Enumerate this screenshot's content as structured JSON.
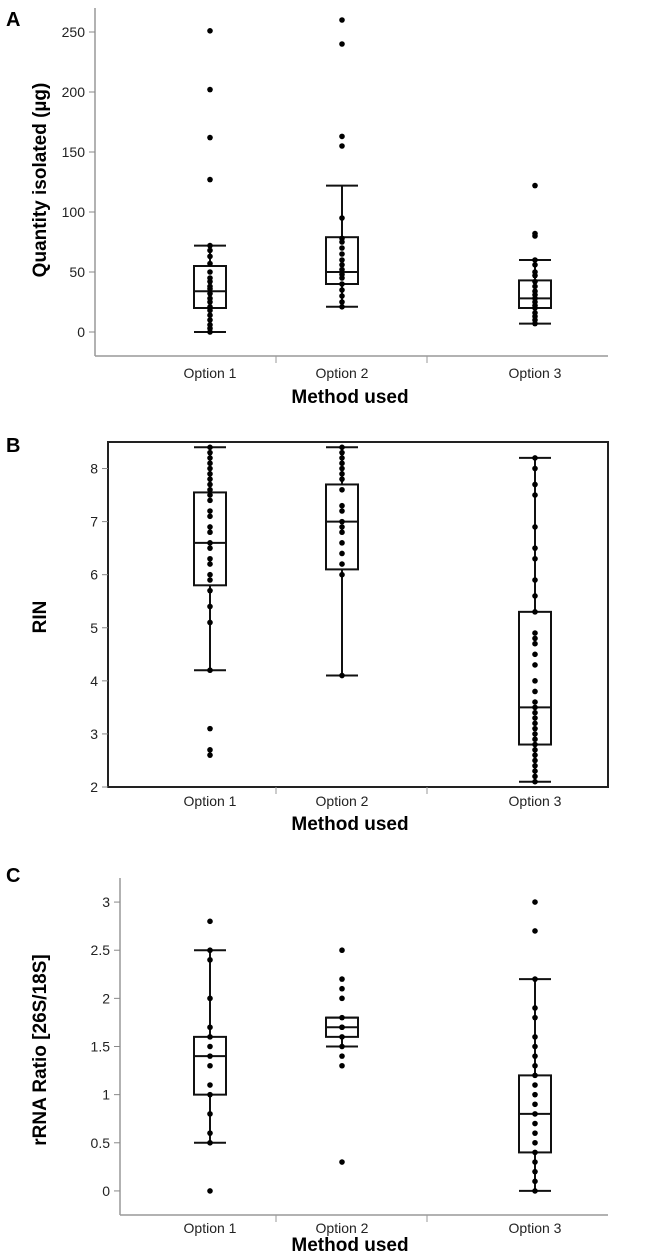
{
  "chart_data": [
    {
      "panel_label": "A",
      "type": "box",
      "xlabel": "Method used",
      "ylabel": "Quantity isolated (µg)",
      "ylim": [
        -20,
        270
      ],
      "yticks": [
        0,
        50,
        100,
        150,
        200,
        250
      ],
      "categories": [
        "Option 1",
        "Option 2",
        "Option 3"
      ],
      "frame": "open",
      "boxes": [
        {
          "category": "Option 1",
          "whisker_low": 0,
          "q1": 20,
          "median": 34,
          "q3": 55,
          "whisker_high": 72,
          "points": [
            0,
            3,
            6,
            10,
            14,
            18,
            21,
            25,
            28,
            32,
            36,
            38,
            42,
            45,
            50,
            57,
            63,
            68,
            72,
            127,
            162,
            202,
            251
          ]
        },
        {
          "category": "Option 2",
          "whisker_low": 21,
          "q1": 40,
          "median": 50,
          "q3": 79,
          "whisker_high": 122,
          "points": [
            21,
            25,
            30,
            35,
            40,
            45,
            48,
            52,
            56,
            60,
            65,
            70,
            75,
            78,
            95,
            155,
            163,
            240,
            260
          ]
        },
        {
          "category": "Option 3",
          "whisker_low": 7,
          "q1": 20,
          "median": 28,
          "q3": 43,
          "whisker_high": 60,
          "points": [
            7,
            10,
            13,
            16,
            20,
            22,
            25,
            28,
            31,
            34,
            38,
            42,
            47,
            50,
            56,
            60,
            80,
            82,
            122
          ]
        }
      ]
    },
    {
      "panel_label": "B",
      "type": "box",
      "xlabel": "Method used",
      "ylabel": "RIN",
      "ylim": [
        2,
        8.5
      ],
      "yticks": [
        2,
        3,
        4,
        5,
        6,
        7,
        8
      ],
      "categories": [
        "Option 1",
        "Option 2",
        "Option 3"
      ],
      "frame": "closed",
      "boxes": [
        {
          "category": "Option 1",
          "whisker_low": 4.2,
          "q1": 5.8,
          "median": 6.6,
          "q3": 7.55,
          "whisker_high": 8.4,
          "points": [
            2.6,
            2.7,
            3.1,
            4.2,
            5.1,
            5.4,
            5.7,
            5.9,
            6.0,
            6.2,
            6.3,
            6.5,
            6.6,
            6.8,
            6.9,
            7.1,
            7.2,
            7.4,
            7.5,
            7.6,
            7.7,
            7.8,
            7.9,
            8.0,
            8.1,
            8.2,
            8.3,
            8.4
          ]
        },
        {
          "category": "Option 2",
          "whisker_low": 4.1,
          "q1": 6.1,
          "median": 7.0,
          "q3": 7.7,
          "whisker_high": 8.4,
          "points": [
            4.1,
            6.0,
            6.2,
            6.4,
            6.6,
            6.8,
            6.9,
            7.0,
            7.2,
            7.3,
            7.6,
            7.8,
            7.9,
            8.0,
            8.1,
            8.2,
            8.3,
            8.4
          ]
        },
        {
          "category": "Option 3",
          "whisker_low": 2.1,
          "q1": 2.8,
          "median": 3.5,
          "q3": 5.3,
          "whisker_high": 8.2,
          "points": [
            2.1,
            2.2,
            2.3,
            2.4,
            2.5,
            2.6,
            2.7,
            2.8,
            2.9,
            3.0,
            3.1,
            3.2,
            3.3,
            3.4,
            3.5,
            3.6,
            3.8,
            4.0,
            4.3,
            4.5,
            4.7,
            4.8,
            4.9,
            5.3,
            5.6,
            5.9,
            6.3,
            6.5,
            6.9,
            7.5,
            7.7,
            8.0,
            8.2
          ]
        }
      ]
    },
    {
      "panel_label": "C",
      "type": "box",
      "xlabel": "Method used",
      "ylabel": "rRNA Ratio [26S/18S]",
      "ylim": [
        -0.25,
        3.25
      ],
      "yticks": [
        "0",
        "0.5",
        "1",
        "1.5",
        "2",
        "2.5",
        "3"
      ],
      "categories": [
        "Option 1",
        "Option 2",
        "Option 3"
      ],
      "frame": "open",
      "boxes": [
        {
          "category": "Option 1",
          "whisker_low": 0.5,
          "q1": 1.0,
          "median": 1.4,
          "q3": 1.6,
          "whisker_high": 2.5,
          "points": [
            0,
            0.5,
            0.6,
            0.8,
            1.0,
            1.1,
            1.3,
            1.4,
            1.5,
            1.6,
            1.7,
            2.0,
            2.4,
            2.5,
            2.8
          ]
        },
        {
          "category": "Option 2",
          "whisker_low": 1.5,
          "q1": 1.6,
          "median": 1.7,
          "q3": 1.8,
          "whisker_high": 1.8,
          "points": [
            0.3,
            1.3,
            1.4,
            1.5,
            1.6,
            1.7,
            1.7,
            1.8,
            2.0,
            2.1,
            2.2,
            2.5
          ]
        },
        {
          "category": "Option 3",
          "whisker_low": 0,
          "q1": 0.4,
          "median": 0.8,
          "q3": 1.2,
          "whisker_high": 2.2,
          "points": [
            0,
            0.1,
            0.2,
            0.3,
            0.4,
            0.5,
            0.6,
            0.7,
            0.8,
            0.9,
            1.0,
            1.1,
            1.2,
            1.3,
            1.4,
            1.5,
            1.6,
            1.8,
            1.9,
            2.2,
            2.7,
            3.0
          ]
        }
      ]
    }
  ]
}
